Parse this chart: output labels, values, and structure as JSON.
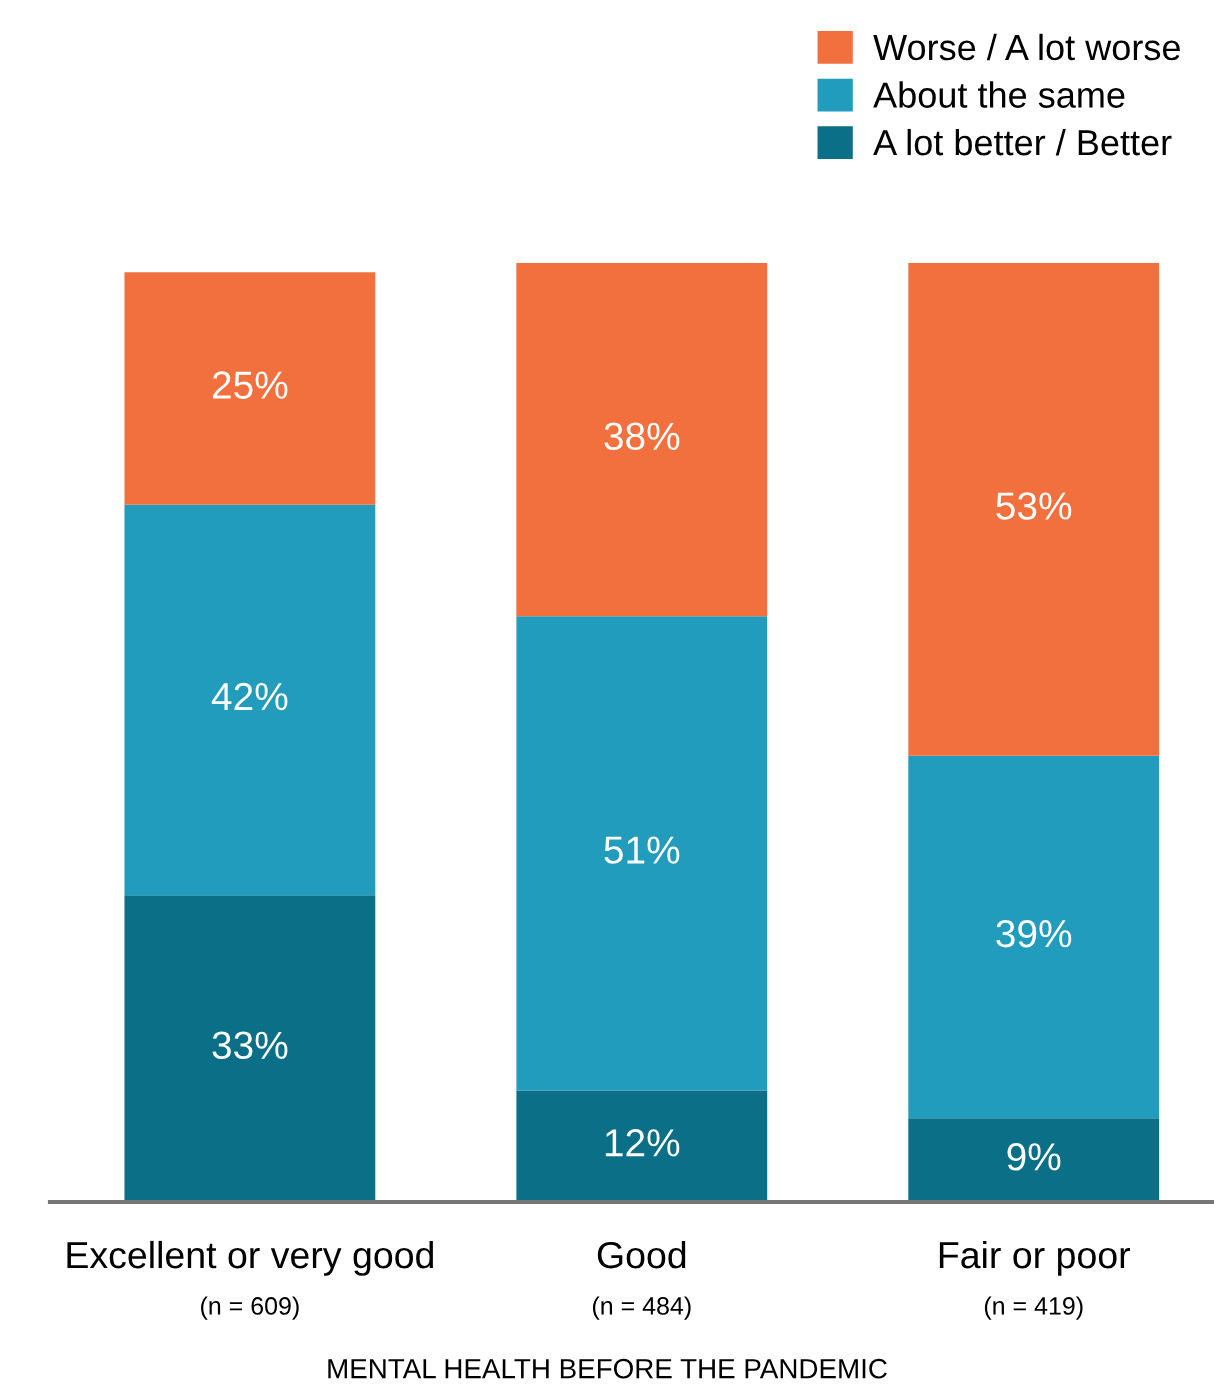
{
  "chart_data": {
    "type": "bar",
    "stacked": true,
    "categories": [
      "Excellent or very good\n(n = 609)",
      "Good\n(n = 484)",
      "Fair or poor\n(n = 419)"
    ],
    "xlabel": "MENTAL HEALTH BEFORE THE PANDEMIC",
    "series": [
      {
        "name": "A lot better / Better",
        "color": "#0b7087",
        "values": [
          33,
          12,
          9
        ],
        "value_labels": [
          "33%",
          "12%",
          "9%"
        ]
      },
      {
        "name": "About the same",
        "color": "#229cbc",
        "values": [
          42,
          51,
          39
        ],
        "value_labels": [
          "42%",
          "51%",
          "39%"
        ]
      },
      {
        "name": "Worse / A lot worse",
        "color": "#f2703d",
        "values": [
          25,
          38,
          53
        ],
        "value_labels": [
          "25%",
          "38%",
          "53%"
        ]
      }
    ],
    "legend": "top right",
    "grid": false
  }
}
